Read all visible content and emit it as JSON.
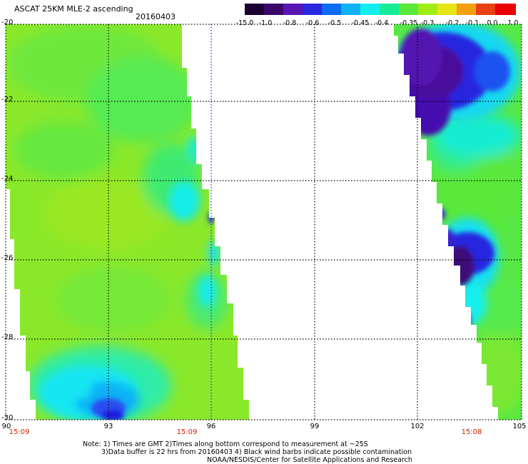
{
  "header": {
    "title": "ASCAT 25KM MLE-2 ascending",
    "date": "20160403"
  },
  "colorbar": {
    "labels": [
      "-15.0",
      "-1.0",
      "-0.8",
      "-0.6",
      "-0.5",
      "-0.45",
      "-0.4",
      "-0.35",
      "-0.3",
      "-0.2",
      "-0.1",
      "0.0",
      "1.0"
    ],
    "colors": [
      "#1a0030",
      "#3a0868",
      "#5a14b4",
      "#2828e0",
      "#0a6cf2",
      "#10b2f6",
      "#12eeee",
      "#16ec98",
      "#5ae83a",
      "#a2ec16",
      "#e6e616",
      "#f2a010",
      "#e84010",
      "#e60000"
    ]
  },
  "map": {
    "lon_range": [
      90,
      105
    ],
    "lat_range": [
      -30,
      -20
    ],
    "lon_ticks": [
      "90",
      "93",
      "96",
      "99",
      "102",
      "105"
    ],
    "lat_ticks": [
      "-20",
      "-22",
      "-24",
      "-26",
      "-28",
      "-30"
    ],
    "times": [
      {
        "label": "15:09",
        "lon": 90
      },
      {
        "label": "15:09",
        "lon": 95.1
      },
      {
        "label": "15:08",
        "lon": 103.6
      }
    ]
  },
  "notes": {
    "line1": "Note: 1) Times are GMT 2)Times along bottom correspond to measurement at ~25S",
    "line2": "3)Data buffer is 22 hrs from 20160403 4) Black wind barbs indicate possible contamination",
    "line3": "NOAA/NESDIS/Center for Satellite Applications and Research"
  }
}
